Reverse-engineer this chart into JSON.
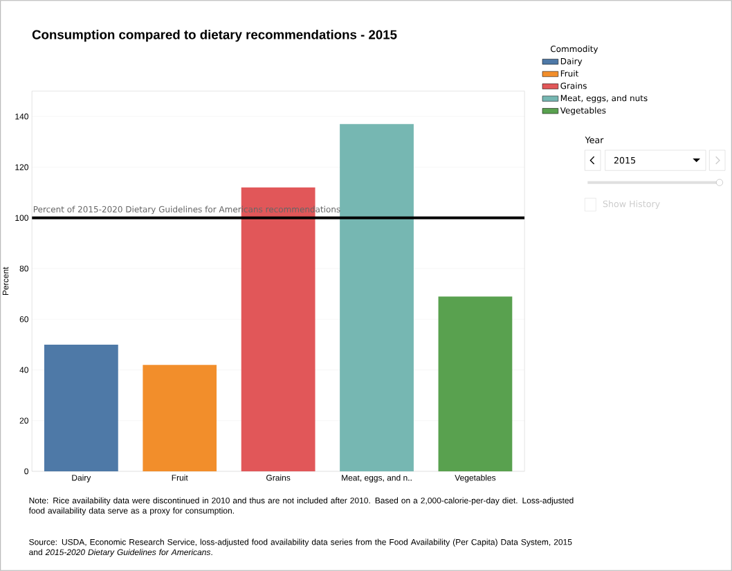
{
  "chart_data": {
    "type": "bar",
    "title": "Consumption compared to dietary recommendations - 2015",
    "ylabel": "Percent",
    "legend_title": "Commodity",
    "categories": [
      "Dairy",
      "Fruit",
      "Grains",
      "Meat, eggs, and n..",
      "Vegetables"
    ],
    "series": [
      {
        "name": "Dairy",
        "color": "#4e79a7",
        "values": [
          50,
          null,
          null,
          null,
          null
        ]
      },
      {
        "name": "Fruit",
        "color": "#f28e2b",
        "values": [
          null,
          42,
          null,
          null,
          null
        ]
      },
      {
        "name": "Grains",
        "color": "#e15759",
        "values": [
          null,
          null,
          112,
          null,
          null
        ]
      },
      {
        "name": "Meat, eggs, and nuts",
        "color": "#76b7b2",
        "values": [
          null,
          null,
          null,
          137,
          null
        ]
      },
      {
        "name": "Vegetables",
        "color": "#59a14f",
        "values": [
          null,
          null,
          null,
          null,
          69
        ]
      }
    ],
    "ylim": [
      0,
      150
    ],
    "yticks": [
      0,
      20,
      40,
      60,
      80,
      100,
      120,
      140
    ],
    "grid": "y",
    "legend": "right",
    "ref_lines": [
      {
        "axis": "y",
        "value": 100,
        "label": "Percent of 2015-2020 Dietary Guidelines for Americans recommendations",
        "color": "#000000"
      }
    ],
    "annotations": [
      "Note: Rice availability data were discontinued in 2010 and thus are not included after 2010. Based on a 2,000-calorie-per-day diet. Loss-adjusted food availability data serve as a proxy for consumption.",
      "Source: USDA, Economic Research Service, loss-adjusted food availability data series from the Food Availability (Per Capita) Data System, 2015 and *2015-2020 Dietary Guidelines for Americans*.",
      "Year",
      "2015",
      "Show History"
    ]
  }
}
